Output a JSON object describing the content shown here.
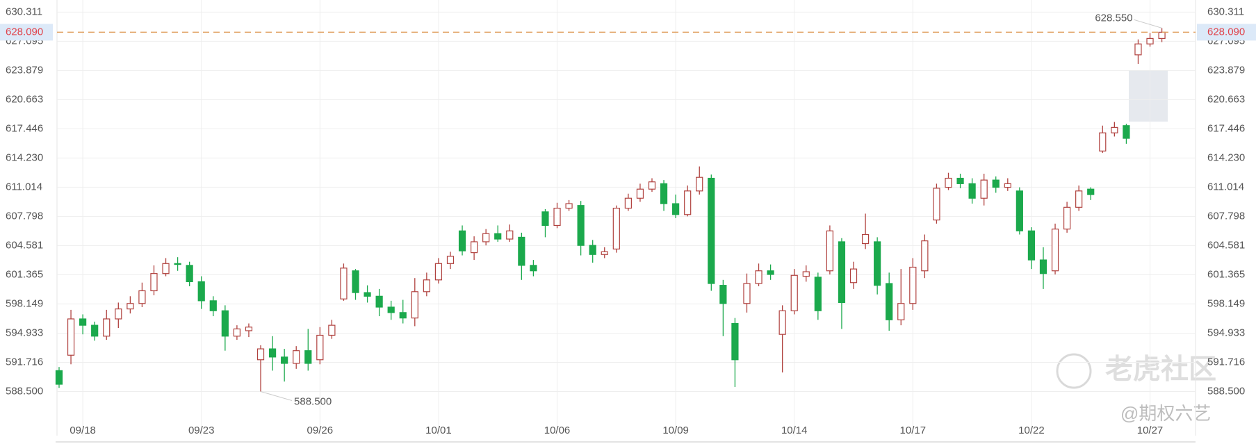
{
  "chart_data": {
    "type": "candlestick",
    "categories": [
      null,
      null,
      "09/18",
      null,
      null,
      null,
      null,
      null,
      null,
      null,
      null,
      null,
      "09/23",
      null,
      null,
      null,
      null,
      null,
      null,
      null,
      null,
      null,
      "09/26",
      null,
      null,
      null,
      null,
      null,
      null,
      null,
      null,
      null,
      "10/01",
      null,
      null,
      null,
      null,
      null,
      null,
      null,
      null,
      null,
      "10/06",
      null,
      null,
      null,
      null,
      null,
      null,
      null,
      null,
      null,
      "10/09",
      null,
      null,
      null,
      null,
      null,
      null,
      null,
      null,
      null,
      "10/14",
      null,
      null,
      null,
      null,
      null,
      null,
      null,
      null,
      null,
      "10/17",
      null,
      null,
      null,
      null,
      null,
      null,
      null,
      null,
      null,
      "10/22",
      null,
      null,
      null,
      null,
      null,
      null,
      null,
      null,
      null,
      "10/27",
      null
    ],
    "open": [
      590.8,
      592.5,
      596.5,
      595.8,
      594.6,
      596.5,
      597.6,
      598.2,
      599.6,
      601.5,
      602.6,
      602.4,
      600.6,
      598.5,
      597.4,
      594.6,
      595.2,
      592.0,
      593.2,
      592.3,
      591.6,
      593.0,
      592.0,
      594.7,
      598.7,
      601.8,
      599.4,
      599.0,
      597.8,
      597.2,
      596.6,
      599.5,
      600.8,
      602.6,
      606.2,
      603.8,
      605.0,
      605.9,
      605.3,
      605.5,
      602.4,
      608.3,
      606.8,
      608.7,
      609.0,
      604.6,
      603.6,
      604.2,
      608.7,
      609.8,
      610.8,
      611.4,
      609.2,
      608.0,
      610.6,
      612.0,
      600.2,
      596.0,
      598.2,
      600.4,
      601.8,
      594.8,
      597.4,
      601.2,
      601.1,
      601.8,
      605.0,
      600.5,
      604.8,
      605.0,
      600.4,
      596.4,
      598.2,
      601.8,
      607.4,
      611.0,
      612.0,
      611.4,
      609.8,
      611.8,
      611.0,
      610.6,
      606.2,
      603.0,
      601.8,
      606.4,
      608.8,
      610.8,
      615.0,
      617.0,
      617.8,
      625.6,
      626.8,
      627.4
    ],
    "high": [
      591.2,
      597.5,
      597.0,
      596.2,
      597.5,
      598.3,
      599.0,
      600.5,
      602.4,
      603.2,
      603.3,
      602.8,
      601.2,
      599.0,
      598.0,
      595.8,
      596.0,
      593.6,
      594.6,
      593.2,
      593.5,
      595.4,
      595.6,
      596.4,
      602.6,
      602.0,
      600.2,
      599.8,
      598.5,
      598.6,
      601.0,
      601.6,
      603.2,
      603.9,
      606.8,
      605.6,
      606.4,
      606.8,
      606.9,
      606.0,
      603.0,
      608.6,
      609.3,
      609.6,
      609.5,
      605.2,
      604.4,
      609.0,
      610.3,
      611.4,
      612.0,
      611.8,
      610.2,
      611.2,
      613.3,
      612.4,
      600.8,
      596.6,
      601.5,
      602.6,
      602.5,
      598.0,
      602.0,
      602.4,
      601.6,
      606.8,
      605.4,
      602.8,
      608.1,
      605.5,
      601.6,
      602.0,
      603.2,
      605.8,
      611.4,
      612.6,
      612.5,
      612.0,
      612.5,
      612.2,
      612.0,
      611.0,
      606.6,
      604.4,
      607.0,
      609.4,
      611.2,
      611.0,
      617.8,
      618.2,
      618.0,
      627.3,
      628.0,
      628.55
    ],
    "low": [
      588.9,
      591.5,
      594.8,
      594.1,
      594.2,
      595.5,
      597.1,
      597.8,
      599.1,
      601.2,
      601.8,
      600.1,
      597.6,
      596.8,
      593.0,
      594.2,
      594.5,
      588.5,
      590.8,
      589.6,
      591.0,
      590.8,
      591.5,
      594.3,
      598.5,
      598.6,
      598.3,
      596.8,
      596.4,
      596.0,
      595.7,
      599.0,
      600.4,
      602.0,
      603.5,
      603.0,
      604.6,
      605.0,
      605.0,
      600.8,
      601.2,
      605.5,
      606.5,
      608.4,
      603.5,
      602.7,
      603.2,
      603.8,
      608.4,
      609.4,
      610.5,
      608.4,
      607.6,
      607.8,
      610.2,
      599.6,
      594.6,
      589.0,
      597.2,
      600.1,
      600.8,
      590.6,
      597.0,
      600.6,
      596.4,
      601.4,
      595.4,
      599.8,
      604.2,
      599.2,
      595.2,
      595.8,
      597.5,
      601.0,
      607.0,
      610.7,
      610.9,
      609.2,
      609.0,
      610.4,
      610.6,
      605.8,
      602.0,
      599.8,
      601.4,
      606.0,
      608.4,
      609.6,
      614.8,
      616.6,
      615.8,
      624.6,
      626.5,
      627.0
    ],
    "close": [
      589.3,
      596.5,
      595.8,
      594.6,
      596.5,
      597.6,
      598.2,
      599.6,
      601.5,
      602.6,
      602.5,
      600.6,
      598.5,
      597.4,
      594.6,
      595.4,
      595.6,
      593.2,
      592.3,
      591.6,
      593.0,
      591.6,
      594.7,
      595.8,
      602.1,
      599.4,
      599.0,
      597.8,
      597.2,
      596.6,
      599.5,
      600.8,
      602.6,
      603.4,
      604.0,
      605.0,
      605.9,
      605.3,
      606.2,
      602.4,
      601.8,
      606.8,
      608.7,
      609.2,
      604.6,
      603.6,
      603.9,
      608.7,
      609.8,
      610.8,
      611.6,
      609.2,
      608.0,
      610.6,
      612.1,
      600.4,
      598.2,
      592.0,
      600.4,
      601.8,
      601.4,
      597.4,
      601.3,
      601.7,
      597.4,
      606.2,
      598.3,
      602.0,
      605.8,
      600.2,
      596.4,
      598.2,
      602.2,
      605.1,
      610.9,
      612.0,
      611.4,
      609.8,
      611.8,
      611.0,
      611.4,
      606.2,
      603.0,
      601.5,
      606.4,
      608.8,
      610.6,
      610.2,
      617.0,
      617.6,
      616.4,
      626.8,
      627.4,
      628.09
    ],
    "up_color": "#b0413e",
    "down_color": "#1ba94c",
    "ylim": [
      585.32,
      631.64
    ],
    "yticks": [
      {
        "value": 588.5,
        "label": "588.500"
      },
      591.716,
      594.933,
      598.149,
      601.365,
      604.581,
      607.798,
      611.014,
      {
        "value": 614.23,
        "label": "614.230"
      },
      617.446,
      620.663,
      623.879,
      627.095,
      630.311
    ],
    "grid": true,
    "last_price": {
      "value": 628.09,
      "label": "628.090"
    },
    "high_label": {
      "value": 628.55,
      "label": "628.550"
    },
    "low_label": {
      "value": 588.5,
      "label": "588.500"
    },
    "watermark": "老虎社区",
    "credit": "@期权六艺"
  }
}
